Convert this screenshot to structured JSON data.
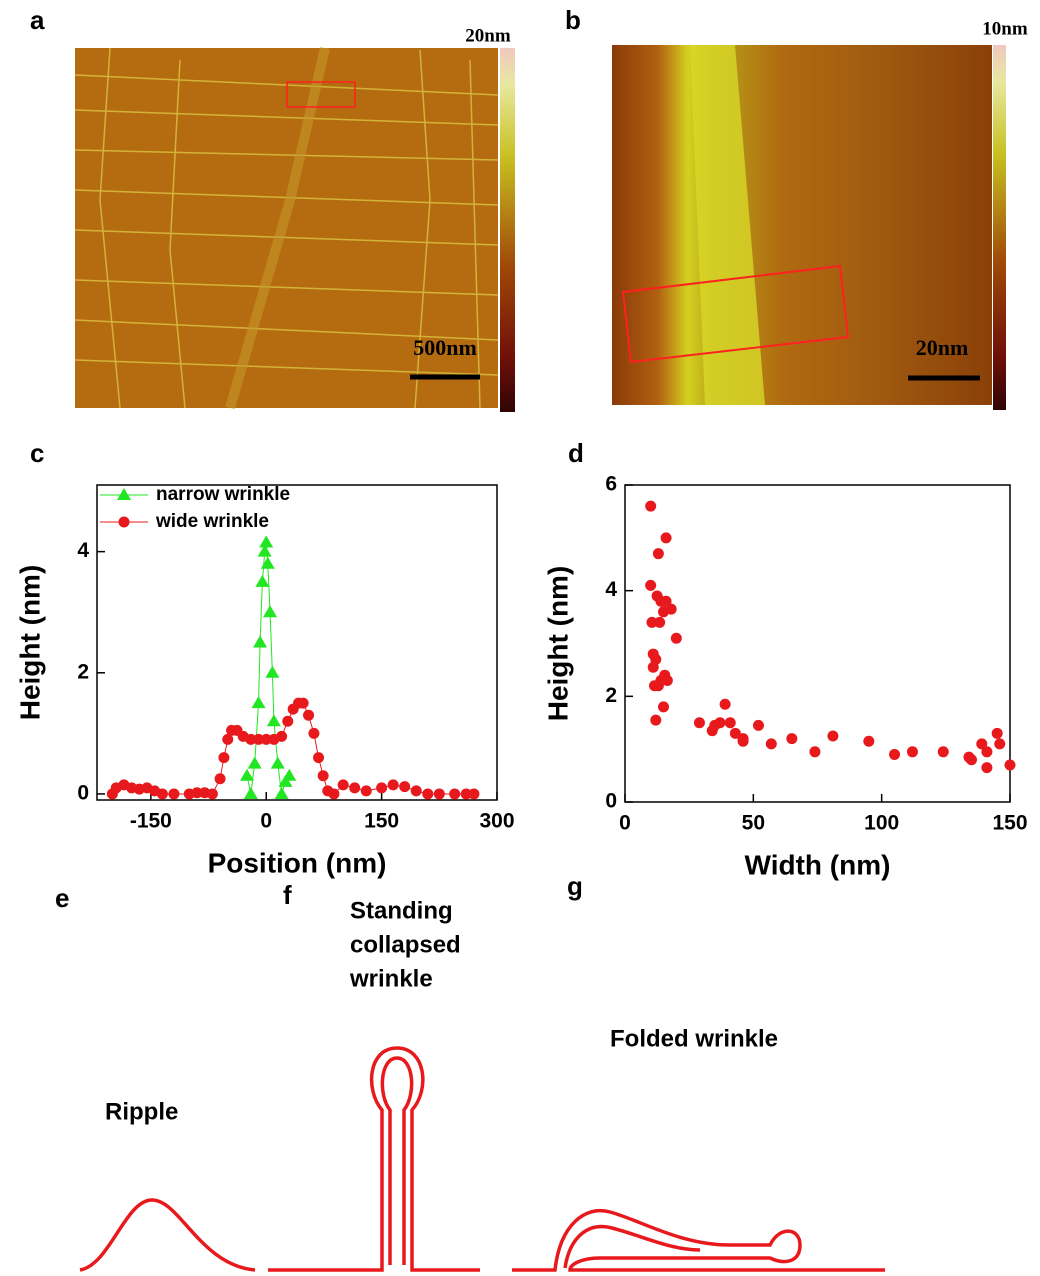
{
  "panels": {
    "a": {
      "label": "a",
      "colorbar_max": "20nm",
      "scale_bar": "500nm"
    },
    "b": {
      "label": "b",
      "colorbar_max": "10nm",
      "scale_bar": "20nm"
    },
    "c": {
      "label": "c"
    },
    "d": {
      "label": "d"
    },
    "e": {
      "label": "e",
      "caption": "Ripple"
    },
    "f": {
      "label": "f",
      "caption": [
        "Standing",
        "collapsed",
        "wrinkle"
      ]
    },
    "g": {
      "label": "g",
      "caption": "Folded wrinkle"
    }
  },
  "chart_data": [
    {
      "type": "line",
      "x_label": "Position (nm)",
      "y_label": "Height (nm)",
      "xlim": [
        -220,
        300
      ],
      "ylim": [
        -0.1,
        5.1
      ],
      "xticks": [
        -150,
        0,
        150,
        300
      ],
      "yticks": [
        0,
        2,
        4
      ],
      "legend": "top-left",
      "series": [
        {
          "name": "narrow wrinkle",
          "color": "#22e622",
          "marker": "triangle",
          "x": [
            -25,
            -20,
            -15,
            -10,
            -8,
            -5,
            -2,
            0,
            2,
            5,
            8,
            10,
            15,
            20,
            25,
            30
          ],
          "values": [
            0.3,
            0.0,
            0.5,
            1.5,
            2.5,
            3.5,
            4.0,
            4.15,
            3.8,
            3.0,
            2.0,
            1.2,
            0.5,
            0.0,
            0.2,
            0.3
          ]
        },
        {
          "name": "wide wrinkle",
          "color": "#e8191c",
          "marker": "circle",
          "x": [
            -200,
            -195,
            -185,
            -175,
            -165,
            -155,
            -145,
            -135,
            -120,
            -100,
            -90,
            -80,
            -70,
            -60,
            -55,
            -50,
            -45,
            -38,
            -30,
            -20,
            -10,
            0,
            10,
            20,
            28,
            35,
            42,
            48,
            55,
            62,
            68,
            74,
            80,
            88,
            100,
            115,
            130,
            150,
            165,
            180,
            195,
            210,
            225,
            245,
            260,
            270
          ],
          "values": [
            0.0,
            0.1,
            0.15,
            0.1,
            0.08,
            0.1,
            0.05,
            0.0,
            0.0,
            0.0,
            0.02,
            0.02,
            0.0,
            0.25,
            0.6,
            0.9,
            1.05,
            1.05,
            0.95,
            0.9,
            0.9,
            0.9,
            0.9,
            0.95,
            1.2,
            1.4,
            1.5,
            1.5,
            1.3,
            1.0,
            0.6,
            0.3,
            0.05,
            0.0,
            0.15,
            0.1,
            0.05,
            0.1,
            0.15,
            0.12,
            0.05,
            0.0,
            0.0,
            0.0,
            0.0,
            0.0
          ]
        }
      ]
    },
    {
      "type": "scatter",
      "x_label": "Width (nm)",
      "y_label": "Height (nm)",
      "xlim": [
        0,
        150
      ],
      "ylim": [
        0,
        6
      ],
      "xticks": [
        0,
        50,
        100,
        150
      ],
      "yticks": [
        0,
        2,
        4,
        6
      ],
      "color": "#e8191c",
      "x": [
        10,
        10,
        10.5,
        11,
        11,
        11.5,
        12,
        12,
        12.5,
        13,
        13,
        13.5,
        14,
        14,
        15,
        15,
        15.5,
        16,
        16,
        16.5,
        18,
        20,
        29,
        34,
        35,
        37,
        39,
        41,
        43,
        46,
        46,
        52,
        57,
        65,
        74,
        81,
        95,
        105,
        112,
        124,
        134,
        135,
        139,
        141,
        141,
        145,
        146,
        150
      ],
      "values": [
        5.6,
        4.1,
        3.4,
        2.55,
        2.8,
        2.2,
        1.55,
        2.7,
        3.9,
        4.7,
        2.2,
        3.4,
        2.3,
        3.8,
        1.8,
        3.6,
        2.4,
        5.0,
        3.8,
        2.3,
        3.65,
        3.1,
        1.5,
        1.35,
        1.45,
        1.5,
        1.85,
        1.5,
        1.3,
        1.2,
        1.15,
        1.45,
        1.1,
        1.2,
        0.95,
        1.25,
        1.15,
        0.9,
        0.95,
        0.95,
        0.85,
        0.8,
        1.1,
        0.95,
        0.65,
        1.3,
        1.1,
        0.7
      ]
    }
  ]
}
